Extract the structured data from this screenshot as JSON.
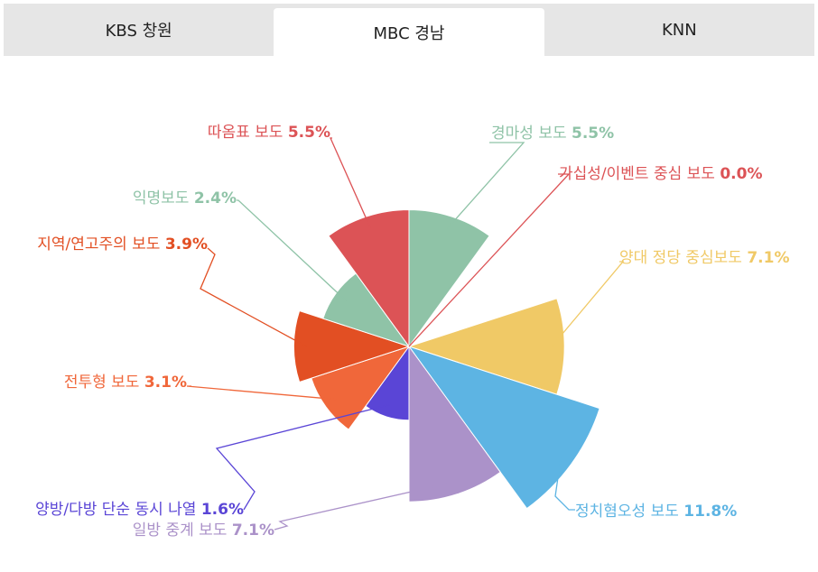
{
  "tabs": [
    {
      "label": "KBS 창원",
      "active": false
    },
    {
      "label": "MBC 경남",
      "active": true
    },
    {
      "label": "KNN",
      "active": false
    }
  ],
  "chart_data": {
    "type": "pie",
    "variant": "variable-radius (nightingale rose)",
    "title": "",
    "unit": "%",
    "slices": [
      {
        "label": "경마성 보도",
        "value": 5.5,
        "value_label": "5.5%",
        "color": "#8fc3a7"
      },
      {
        "label": "가십성/이벤트 중심 보도",
        "value": 0.0,
        "value_label": "0.0%",
        "color": "#dc5356"
      },
      {
        "label": "양대 정당 중심보도",
        "value": 7.1,
        "value_label": "7.1%",
        "color": "#f0c966"
      },
      {
        "label": "정치혐오성 보도",
        "value": 11.8,
        "value_label": "11.8%",
        "color": "#5db4e3"
      },
      {
        "label": "일방 중계 보도",
        "value": 7.1,
        "value_label": "7.1%",
        "color": "#ab92c9"
      },
      {
        "label": "양방/다방 단순 동시 나열",
        "value": 1.6,
        "value_label": "1.6%",
        "color": "#5a45d6"
      },
      {
        "label": "전투형 보도",
        "value": 3.1,
        "value_label": "3.1%",
        "color": "#f0673a"
      },
      {
        "label": "지역/연고주의 보도",
        "value": 3.9,
        "value_label": "3.9%",
        "color": "#e24f23"
      },
      {
        "label": "익명보도",
        "value": 2.4,
        "value_label": "2.4%",
        "color": "#8fc3a7"
      },
      {
        "label": "따옴표 보도",
        "value": 5.5,
        "value_label": "5.5%",
        "color": "#dc5356"
      }
    ]
  }
}
